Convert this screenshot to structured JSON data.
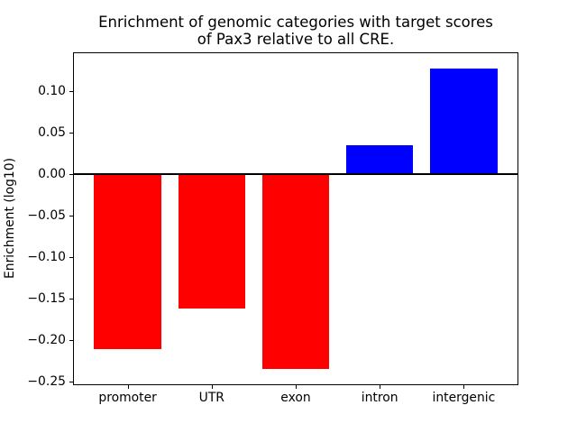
{
  "figure": {
    "background": "#ffffff",
    "title_line1": "Enrichment of genomic categories with target scores",
    "title_line2": "of Pax3 relative to all CRE.",
    "ylabel": "Enrichment (log10)"
  },
  "chart_data": {
    "type": "bar",
    "title": "Enrichment of genomic categories with target scores\nof Pax3 relative to all CRE.",
    "xlabel": "",
    "ylabel": "Enrichment (log10)",
    "categories": [
      "promoter",
      "UTR",
      "exon",
      "intron",
      "intergenic"
    ],
    "values": [
      -0.211,
      -0.162,
      -0.235,
      0.035,
      0.128
    ],
    "bar_colors": [
      "#ff0000",
      "#ff0000",
      "#ff0000",
      "#0000ff",
      "#0000ff"
    ],
    "negative_color": "#ff0000",
    "positive_color": "#0000ff",
    "bar_width": 0.8,
    "xlim": [
      -0.64,
      4.64
    ],
    "ylim": [
      -0.2532,
      0.1462
    ],
    "yticks": [
      {
        "value": 0.1,
        "label": "0.10"
      },
      {
        "value": 0.05,
        "label": "0.05"
      },
      {
        "value": 0.0,
        "label": "0.00"
      },
      {
        "value": -0.05,
        "label": "−0.05"
      },
      {
        "value": -0.1,
        "label": "−0.10"
      },
      {
        "value": -0.15,
        "label": "−0.15"
      },
      {
        "value": -0.2,
        "label": "−0.20"
      },
      {
        "value": -0.25,
        "label": "−0.25"
      }
    ],
    "zero_line": {
      "value": 0,
      "color": "#000000",
      "thickness_px": 2
    },
    "grid": false,
    "legend": null,
    "frame_color": "#000000"
  }
}
